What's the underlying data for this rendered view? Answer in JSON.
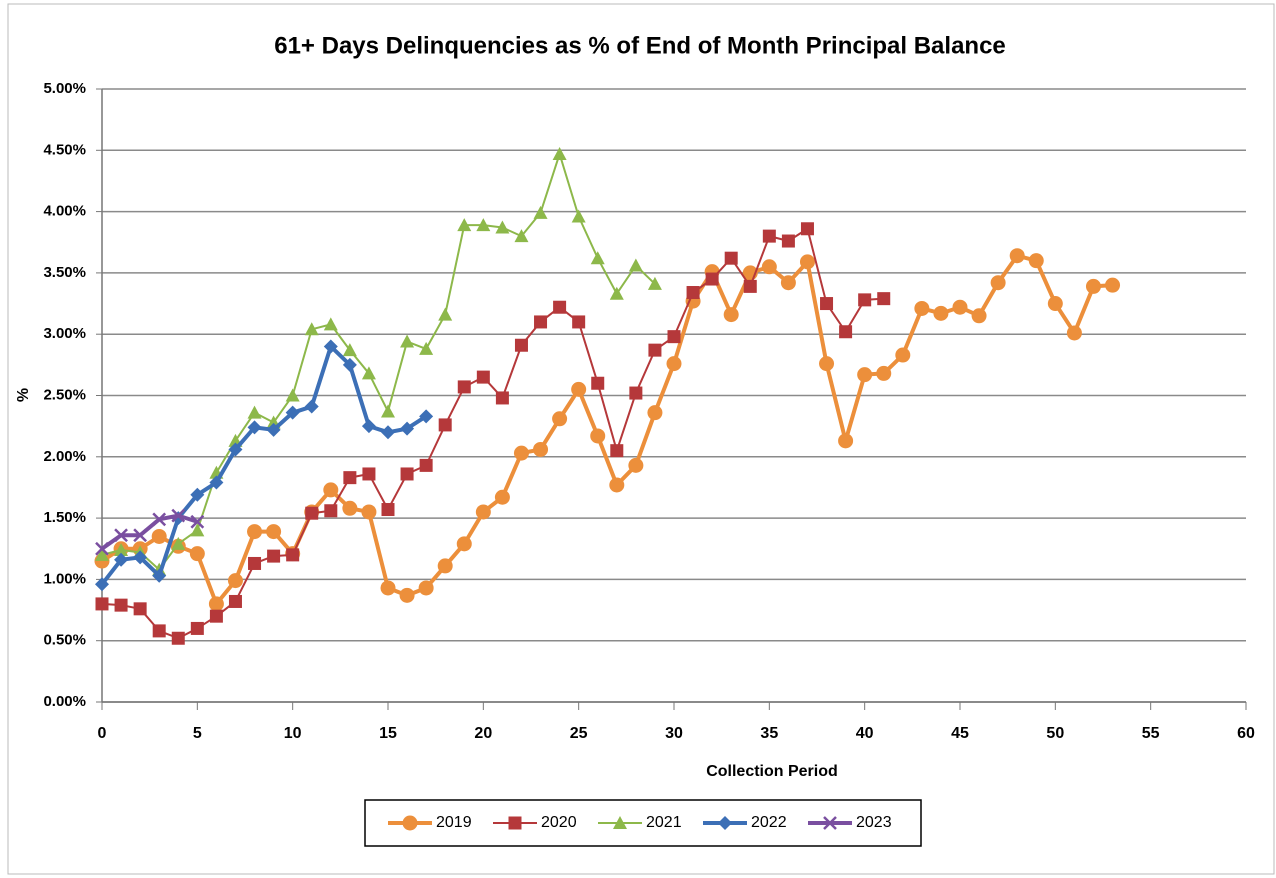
{
  "chart_data": {
    "type": "line",
    "title": "61+ Days Delinquencies as % of End of Month Principal Balance",
    "xlabel": "Collection Period",
    "ylabel": "%",
    "x": [
      0,
      1,
      2,
      3,
      4,
      5,
      6,
      7,
      8,
      9,
      10,
      11,
      12,
      13,
      14,
      15,
      16,
      17,
      18,
      19,
      20,
      21,
      22,
      23,
      24,
      25,
      26,
      27,
      28,
      29,
      30,
      31,
      32,
      33,
      34,
      35,
      36,
      37,
      38,
      39,
      40,
      41,
      42,
      43,
      44,
      45,
      46,
      47,
      48,
      49,
      50,
      51,
      52,
      53
    ],
    "series": [
      {
        "name": "2019",
        "color": "#ec8f3b",
        "marker": "circle",
        "values": [
          1.15,
          1.25,
          1.25,
          1.35,
          1.27,
          1.21,
          0.8,
          0.99,
          1.39,
          1.39,
          1.21,
          1.55,
          1.73,
          1.58,
          1.55,
          0.93,
          0.87,
          0.93,
          1.11,
          1.29,
          1.55,
          1.67,
          2.03,
          2.06,
          2.31,
          2.55,
          2.17,
          1.77,
          1.93,
          2.36,
          2.76,
          3.27,
          3.51,
          3.16,
          3.5,
          3.55,
          3.42,
          3.59,
          2.76,
          2.13,
          2.67,
          2.68,
          2.83,
          3.21,
          3.17,
          3.22,
          3.15,
          3.42,
          3.64,
          3.6,
          3.25,
          3.01,
          3.39,
          3.4
        ]
      },
      {
        "name": "2020",
        "color": "#b5383a",
        "marker": "square",
        "values": [
          0.8,
          0.79,
          0.76,
          0.58,
          0.52,
          0.6,
          0.7,
          0.82,
          1.13,
          1.19,
          1.2,
          1.54,
          1.56,
          1.83,
          1.86,
          1.57,
          1.86,
          1.93,
          2.26,
          2.57,
          2.65,
          2.48,
          2.91,
          3.1,
          3.22,
          3.1,
          2.6,
          2.05,
          2.52,
          2.87,
          2.98,
          3.34,
          3.45,
          3.62,
          3.39,
          3.8,
          3.76,
          3.86,
          3.25,
          3.02,
          3.28,
          3.29,
          null,
          null,
          null,
          null,
          null,
          null,
          null,
          null,
          null,
          null,
          null,
          null
        ]
      },
      {
        "name": "2021",
        "color": "#8db84a",
        "marker": "triangle",
        "values": [
          1.2,
          1.24,
          1.22,
          1.08,
          1.29,
          1.4,
          1.87,
          2.13,
          2.36,
          2.28,
          2.5,
          3.04,
          3.08,
          2.87,
          2.68,
          2.37,
          2.94,
          2.88,
          3.16,
          3.89,
          3.89,
          3.87,
          3.8,
          3.99,
          4.47,
          3.96,
          3.62,
          3.33,
          3.56,
          3.41,
          null,
          null,
          null,
          null,
          null,
          null,
          null,
          null,
          null,
          null,
          null,
          null,
          null,
          null,
          null,
          null,
          null,
          null,
          null,
          null,
          null,
          null,
          null,
          null
        ]
      },
      {
        "name": "2022",
        "color": "#3c6fb6",
        "marker": "diamond",
        "values": [
          0.96,
          1.16,
          1.18,
          1.03,
          1.5,
          1.69,
          1.79,
          2.06,
          2.24,
          2.22,
          2.36,
          2.41,
          2.9,
          2.75,
          2.25,
          2.2,
          2.23,
          2.33,
          null,
          null,
          null,
          null,
          null,
          null,
          null,
          null,
          null,
          null,
          null,
          null,
          null,
          null,
          null,
          null,
          null,
          null,
          null,
          null,
          null,
          null,
          null,
          null,
          null,
          null,
          null,
          null,
          null,
          null,
          null,
          null,
          null,
          null,
          null,
          null
        ]
      },
      {
        "name": "2023",
        "color": "#7a4fa0",
        "marker": "x",
        "values": [
          1.25,
          1.36,
          1.36,
          1.49,
          1.52,
          1.47,
          null,
          null,
          null,
          null,
          null,
          null,
          null,
          null,
          null,
          null,
          null,
          null,
          null,
          null,
          null,
          null,
          null,
          null,
          null,
          null,
          null,
          null,
          null,
          null,
          null,
          null,
          null,
          null,
          null,
          null,
          null,
          null,
          null,
          null,
          null,
          null,
          null,
          null,
          null,
          null,
          null,
          null,
          null,
          null,
          null,
          null,
          null,
          null
        ]
      }
    ],
    "xlim": [
      0,
      60
    ],
    "xticks": [
      0,
      5,
      10,
      15,
      20,
      25,
      30,
      35,
      40,
      45,
      50,
      55,
      60
    ],
    "ylim": [
      0,
      5
    ],
    "yticks": [
      {
        "value": 0,
        "label": "0.00%"
      },
      {
        "value": 0.5,
        "label": "0.50%"
      },
      {
        "value": 1,
        "label": "1.00%"
      },
      {
        "value": 1.5,
        "label": "1.50%"
      },
      {
        "value": 2,
        "label": "2.00%"
      },
      {
        "value": 2.5,
        "label": "2.50%"
      },
      {
        "value": 3,
        "label": "3.00%"
      },
      {
        "value": 3.5,
        "label": "3.50%"
      },
      {
        "value": 4,
        "label": "4.00%"
      },
      {
        "value": 4.5,
        "label": "4.50%"
      },
      {
        "value": 5,
        "label": "5.00%"
      }
    ],
    "grid": true,
    "legend": "bottom"
  }
}
